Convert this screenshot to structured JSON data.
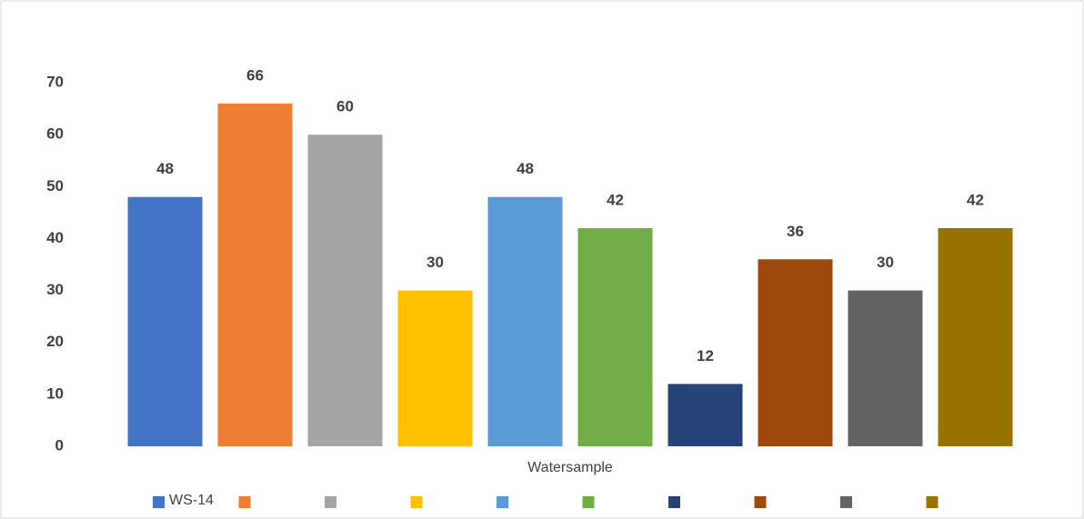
{
  "chart_data": {
    "type": "bar",
    "x_label": "Watersample",
    "categories": [
      null
    ],
    "series": [
      {
        "name": "WS-14",
        "color": "#4472c4",
        "values": [
          48
        ]
      },
      {
        "name": null,
        "color": "#ed7d31",
        "values": [
          66
        ]
      },
      {
        "name": null,
        "color": "#a5a5a5",
        "values": [
          60
        ]
      },
      {
        "name": null,
        "color": "#ffc000",
        "values": [
          30
        ]
      },
      {
        "name": null,
        "color": "#5b9bd5",
        "values": [
          48
        ]
      },
      {
        "name": null,
        "color": "#70ad47",
        "values": [
          42
        ]
      },
      {
        "name": null,
        "color": "#264478",
        "values": [
          12
        ]
      },
      {
        "name": null,
        "color": "#9e480e",
        "values": [
          36
        ]
      },
      {
        "name": null,
        "color": "#636363",
        "values": [
          30
        ]
      },
      {
        "name": null,
        "color": "#997300",
        "values": [
          42
        ]
      }
    ],
    "ylim": [
      0,
      70
    ],
    "yticks": [
      0,
      10,
      20,
      30,
      40,
      50,
      60,
      70
    ],
    "grid": false,
    "legend": "bottom"
  }
}
